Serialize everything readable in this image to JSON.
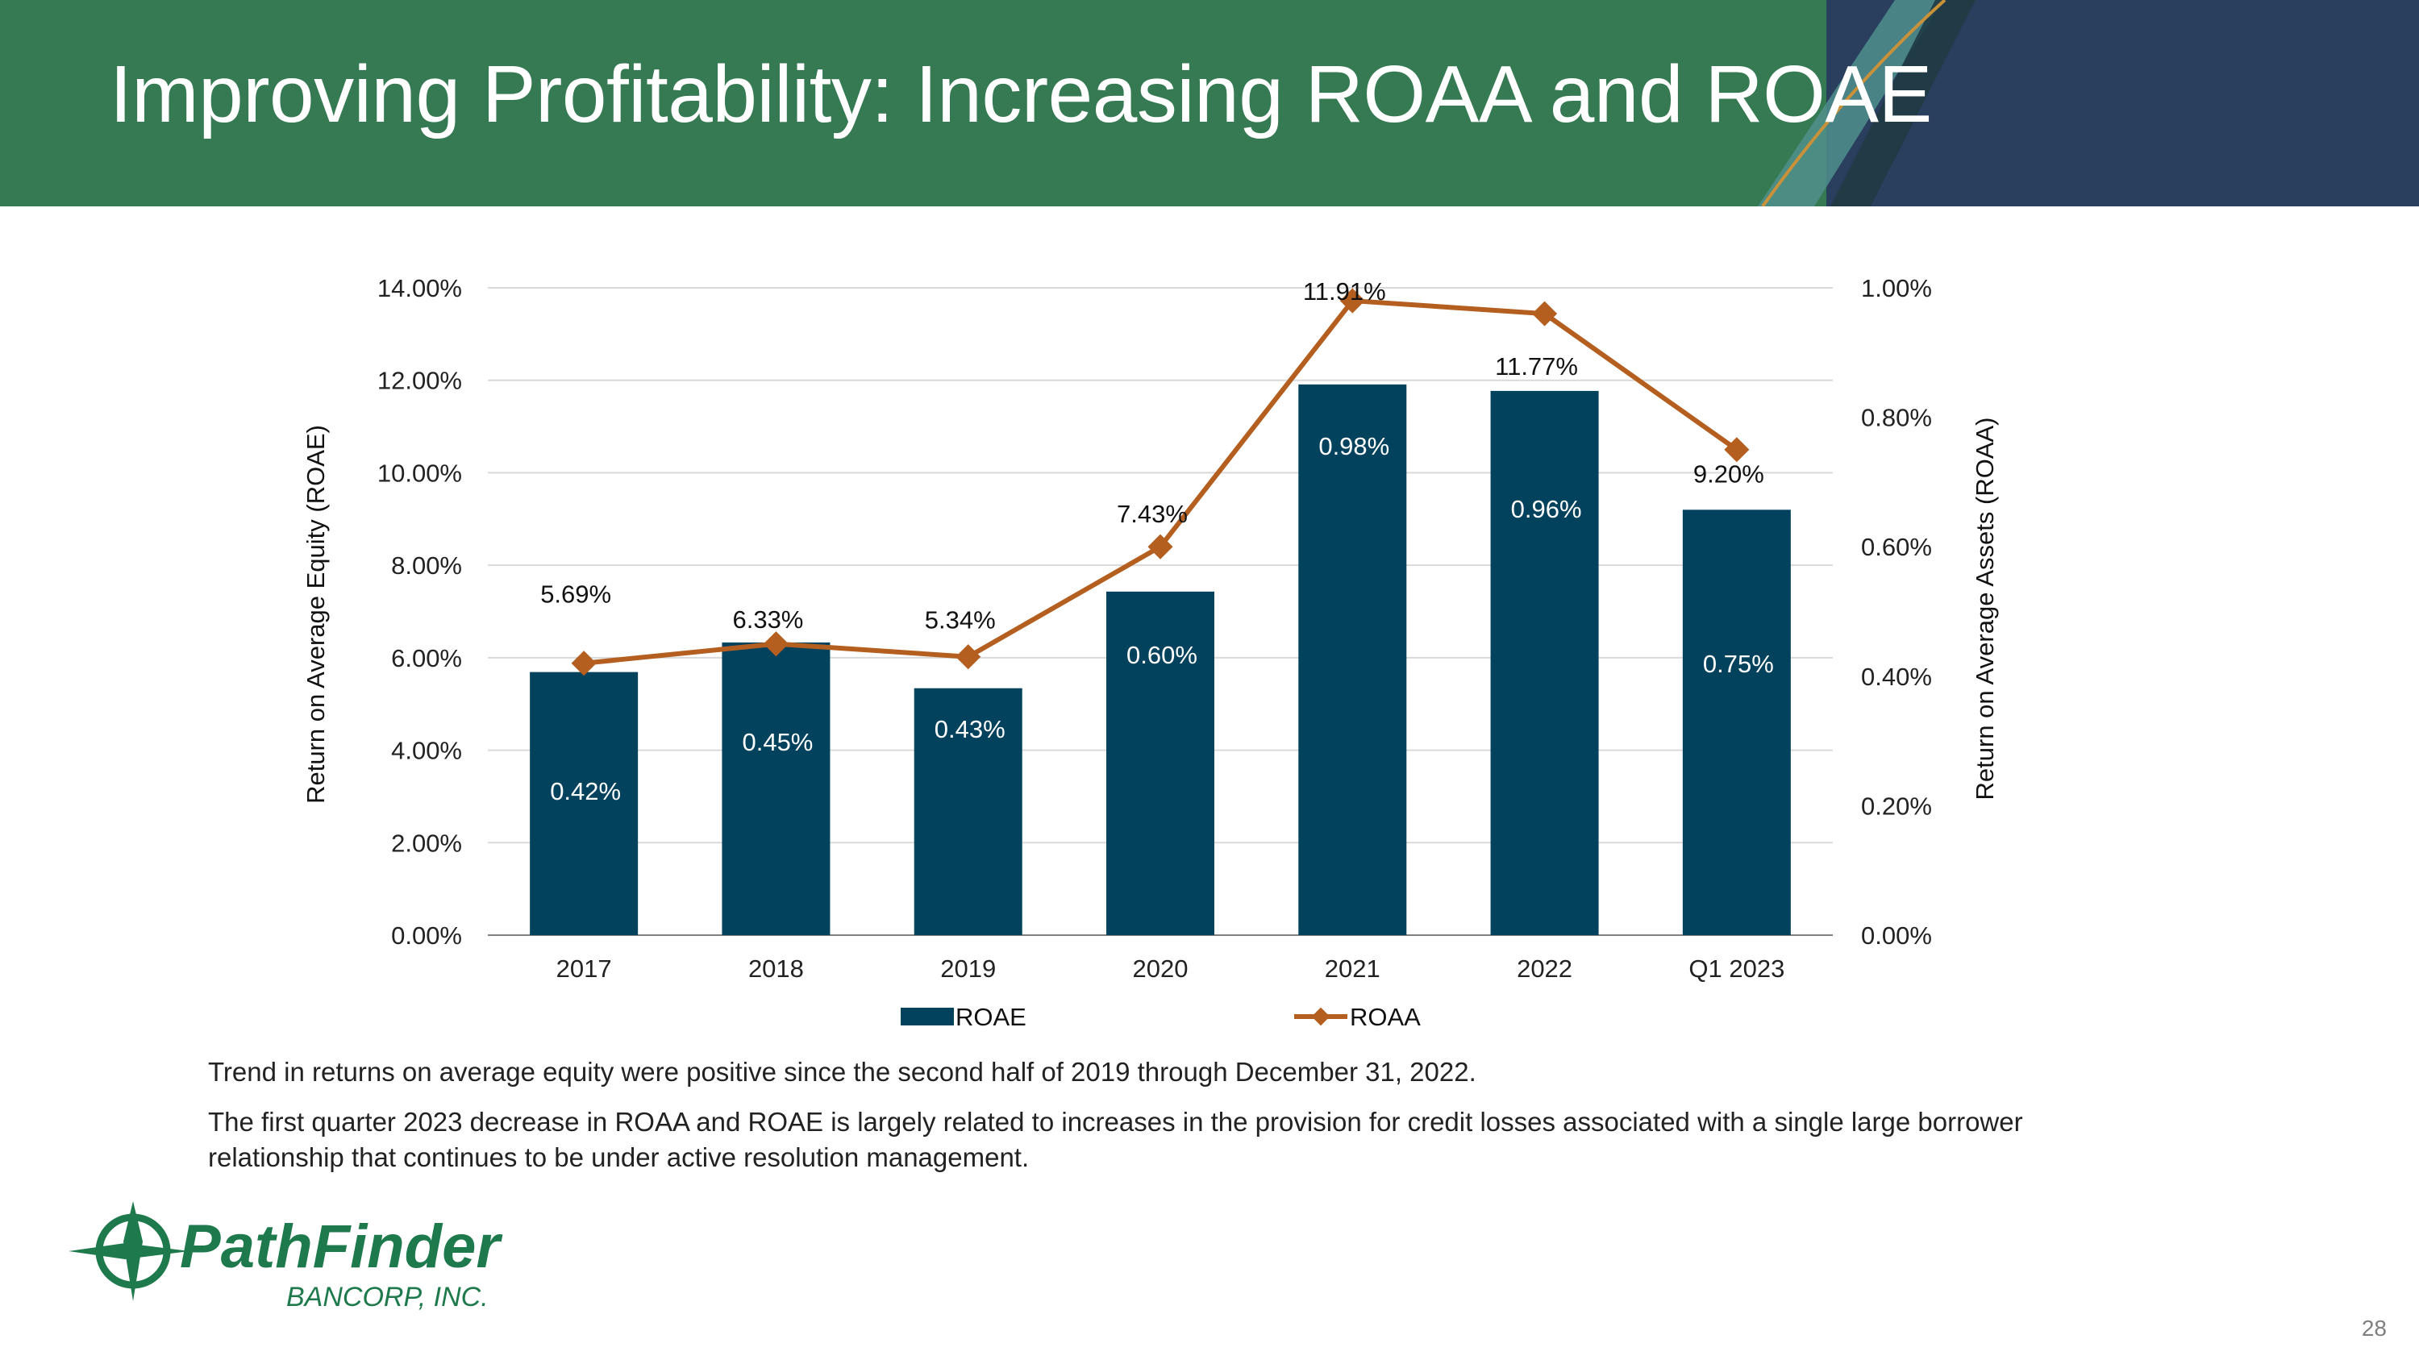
{
  "slide": {
    "title": "Improving Profitability: Increasing ROAA and ROAE",
    "page_number": "28",
    "commentary": [
      "Trend in returns on average equity were positive since the second half of 2019 through December 31, 2022.",
      "The first quarter 2023 decrease in ROAA and ROAE is largely related to increases in the provision for credit losses associated with a single large borrower relationship that continues to be under active resolution management."
    ],
    "logo": {
      "name": "PathFinder",
      "tagline": "BANCORP, INC."
    }
  },
  "colors": {
    "header_green": "#357a53",
    "header_navy": "#2a3f5e",
    "bar": "#03425d",
    "line": "#b45f1f",
    "gridline": "#d9d9d9"
  },
  "chart_data": {
    "type": "bar",
    "title": "",
    "categories": [
      "2017",
      "2018",
      "2019",
      "2020",
      "2021",
      "2022",
      "Q1 2023"
    ],
    "series": [
      {
        "name": "ROAE",
        "type": "bar",
        "axis": "left",
        "values": [
          5.69,
          6.33,
          5.34,
          7.43,
          11.91,
          11.77,
          9.2
        ],
        "labels": [
          "5.69%",
          "6.33%",
          "5.34%",
          "7.43%",
          "11.91%",
          "11.77%",
          "9.20%"
        ]
      },
      {
        "name": "ROAA",
        "type": "line",
        "axis": "right",
        "values": [
          0.42,
          0.45,
          0.43,
          0.6,
          0.98,
          0.96,
          0.75
        ],
        "labels": [
          "0.42%",
          "0.45%",
          "0.43%",
          "0.60%",
          "0.98%",
          "0.96%",
          "0.75%"
        ]
      }
    ],
    "y_left": {
      "label": "Return on Average Equity (ROAE)",
      "ylim": [
        0,
        14
      ],
      "ticks": [
        "0.00%",
        "2.00%",
        "4.00%",
        "6.00%",
        "8.00%",
        "10.00%",
        "12.00%",
        "14.00%"
      ]
    },
    "y_right": {
      "label": "Return on Average Assets (ROAA)",
      "ylim": [
        0,
        1
      ],
      "ticks": [
        "0.00%",
        "0.20%",
        "0.40%",
        "0.60%",
        "0.80%",
        "1.00%"
      ]
    },
    "legend": [
      "ROAE",
      "ROAA"
    ],
    "legend_position": "bottom",
    "grid": true
  }
}
